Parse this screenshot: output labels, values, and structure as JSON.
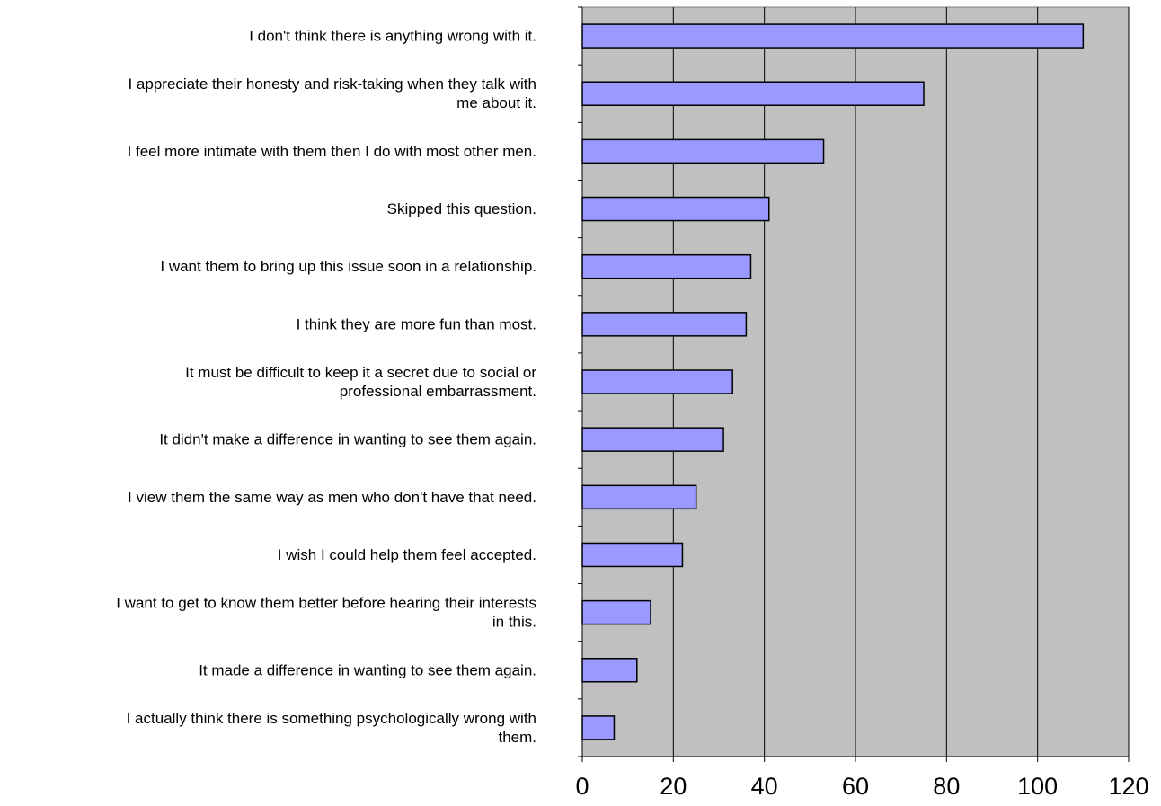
{
  "chart_data": {
    "type": "bar",
    "orientation": "horizontal",
    "categories": [
      "I don't think there is anything wrong with it.",
      "I appreciate their honesty and risk-taking when they talk with me about it.",
      "I feel more intimate with them then I do with most other men.",
      "Skipped this question.",
      "I want them to bring up this issue soon in a relationship.",
      "I think they are more fun than most.",
      "It must be difficult to keep it a secret due to social or professional embarrassment.",
      "It didn't make a difference in wanting to see them again.",
      "I view them the same way as men who don't have that need.",
      "I wish I could help them feel accepted.",
      "I want to get to know them better before hearing their interests in this.",
      "It made a difference in wanting to see them again.",
      "I actually think there is something psychologically wrong with them."
    ],
    "category_lines": [
      [
        "I don't think there is anything wrong with it."
      ],
      [
        "I appreciate their honesty and risk-taking when they talk with",
        "me about it."
      ],
      [
        "I feel more intimate with them then I do with most other men."
      ],
      [
        "Skipped this question."
      ],
      [
        "I want them to bring up this issue soon in a relationship."
      ],
      [
        "I think they are more fun than most."
      ],
      [
        "It must be difficult to keep it a secret due to social or",
        "professional embarrassment."
      ],
      [
        "It didn't make a difference in wanting to see them again."
      ],
      [
        "I view them the same way as men who don't have that need."
      ],
      [
        "I wish I could help them feel accepted."
      ],
      [
        "I want to get to know them better before hearing their interests",
        "in this."
      ],
      [
        "It made a difference in wanting to see them again."
      ],
      [
        "I actually think there is something psychologically wrong with",
        "them."
      ]
    ],
    "values": [
      110,
      75,
      53,
      41,
      37,
      36,
      33,
      31,
      25,
      22,
      15,
      12,
      7
    ],
    "xlim": [
      0,
      120
    ],
    "xticks": [
      0,
      20,
      40,
      60,
      80,
      100,
      120
    ],
    "xtick_labels": [
      "0",
      "20",
      "40",
      "60",
      "80",
      "100",
      "120"
    ],
    "title": "",
    "xlabel": "",
    "ylabel": "",
    "grid": "vertical",
    "legend": "none",
    "colors": {
      "bar_fill": "#9999ff",
      "bar_stroke": "#000000",
      "plot_background": "#c0c0c0",
      "gridline": "#000000"
    }
  }
}
